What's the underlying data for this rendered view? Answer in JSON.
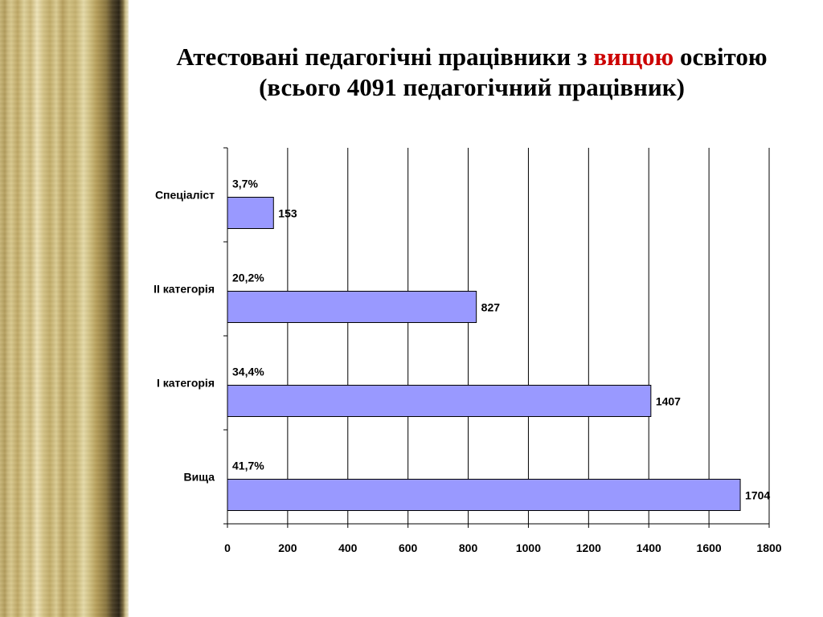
{
  "slide": {
    "title_part1": "Атестовані педагогічні працівники з ",
    "title_highlight": "вищою",
    "title_part2": " освітою",
    "title_line2": "(всього 4091 педагогічний працівник)",
    "title_highlight_color": "#cc0000"
  },
  "chart_data": {
    "type": "bar",
    "orientation": "horizontal",
    "categories": [
      "Спеціаліст",
      "ІІ категорія",
      "І категорія",
      "Вища"
    ],
    "values": [
      153,
      827,
      1407,
      1704
    ],
    "value_labels": [
      "153",
      "827",
      "1407",
      "1704"
    ],
    "percent_labels": [
      "3,7%",
      "20,2%",
      "34,4%",
      "41,7%"
    ],
    "xlim": [
      0,
      1800
    ],
    "xticks": [
      0,
      200,
      400,
      600,
      800,
      1000,
      1200,
      1400,
      1600,
      1800
    ],
    "grid": true,
    "bar_color": "#9999ff",
    "bar_edge_color": "#000000"
  }
}
